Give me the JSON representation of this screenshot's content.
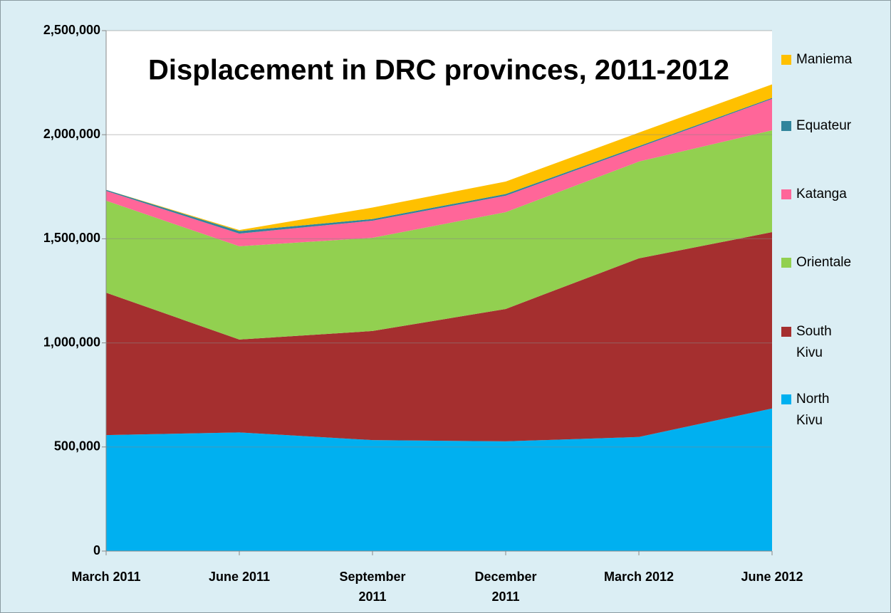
{
  "chart_data": {
    "type": "stacked_area",
    "title": "Displacement in DRC provinces, 2011-2012",
    "categories": [
      "March 2011",
      "June 2011",
      "September 2011",
      "December 2011",
      "March 2012",
      "June 2012"
    ],
    "series": [
      {
        "name": "North Kivu",
        "color": "#00b0f0",
        "values": [
          557000,
          570000,
          533000,
          527000,
          548000,
          685000
        ]
      },
      {
        "name": "South Kivu",
        "color": "#a52f2f",
        "values": [
          684000,
          446000,
          524000,
          636000,
          858000,
          847000
        ]
      },
      {
        "name": "Orientale",
        "color": "#92d050",
        "values": [
          442000,
          448000,
          448000,
          465000,
          465000,
          489000
        ]
      },
      {
        "name": "Katanga",
        "color": "#ff6699",
        "values": [
          47000,
          61000,
          82000,
          79000,
          68000,
          151000
        ]
      },
      {
        "name": "Equateur",
        "color": "#31859c",
        "values": [
          5000,
          12000,
          8000,
          8000,
          6000,
          5000
        ]
      },
      {
        "name": "Maniema",
        "color": "#ffc000",
        "values": [
          0,
          5000,
          55000,
          60000,
          65000,
          65000
        ]
      }
    ],
    "ylim": [
      0,
      2500000
    ],
    "yticks": [
      0,
      {
        "value": 500000,
        "label": "500,000"
      },
      {
        "value": 1000000,
        "label": "1,000,000"
      },
      {
        "value": 1500000,
        "label": "1,500,000"
      },
      {
        "value": 2000000,
        "label": "2,000,000"
      },
      {
        "value": 2500000,
        "label": "2,500,000"
      }
    ],
    "grid": true,
    "legend": "right"
  }
}
